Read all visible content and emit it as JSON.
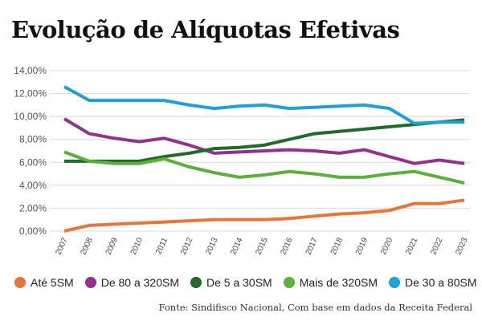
{
  "chart_data": {
    "type": "line",
    "title": "Evolução de Alíquotas Efetivas",
    "source": "Fonte: Sindifisco Nacional, Com base em dados da Receita Federal",
    "x": [
      "2007",
      "2008",
      "2009",
      "2010",
      "2011",
      "2012",
      "2013",
      "2014",
      "2015",
      "2016",
      "2017",
      "2018",
      "2019",
      "2020",
      "2021",
      "2022",
      "2023"
    ],
    "yticks": [
      "0,00%",
      "2,00%",
      "4,00%",
      "6,00%",
      "8,00%",
      "10,00%",
      "12,00%",
      "14,00%"
    ],
    "ylim": [
      0,
      14
    ],
    "grid": true,
    "legend_position": "bottom",
    "series": [
      {
        "name": "Até 5SM",
        "color": "#e8763a",
        "values": [
          0.0,
          0.5,
          0.6,
          0.7,
          0.8,
          0.9,
          1.0,
          1.0,
          1.0,
          1.1,
          1.3,
          1.5,
          1.6,
          1.8,
          2.4,
          2.4,
          2.7
        ]
      },
      {
        "name": "De 80 a 320SM",
        "color": "#94318f",
        "values": [
          9.8,
          8.5,
          8.1,
          7.8,
          8.1,
          7.5,
          6.8,
          6.9,
          7.0,
          7.1,
          7.0,
          6.8,
          7.1,
          6.5,
          5.9,
          6.2,
          5.9
        ]
      },
      {
        "name": "De 5 a 30SM",
        "color": "#1e6b2b",
        "values": [
          6.1,
          6.1,
          6.1,
          6.1,
          6.5,
          6.8,
          7.2,
          7.3,
          7.5,
          8.0,
          8.5,
          8.7,
          8.9,
          9.1,
          9.3,
          9.5,
          9.7
        ]
      },
      {
        "name": "Mais de 320SM",
        "color": "#5bb03a",
        "values": [
          6.9,
          6.1,
          5.9,
          5.9,
          6.3,
          5.6,
          5.1,
          4.7,
          4.9,
          5.2,
          5.0,
          4.7,
          4.7,
          5.0,
          5.2,
          4.7,
          4.2
        ]
      },
      {
        "name": "De 30 a 80SM",
        "color": "#1da1d8",
        "values": [
          12.6,
          11.4,
          11.4,
          11.4,
          11.4,
          11.0,
          10.7,
          10.9,
          11.0,
          10.7,
          10.8,
          10.9,
          11.0,
          10.7,
          9.4,
          9.5,
          9.5
        ]
      }
    ]
  }
}
